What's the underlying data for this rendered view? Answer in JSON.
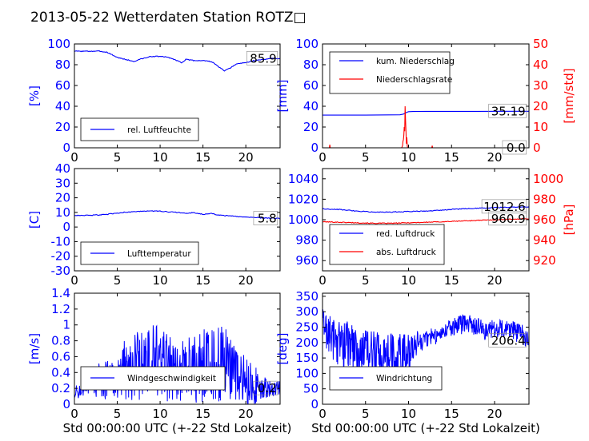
{
  "page": {
    "title": "2013-05-22 Wetterdaten Station ROTZ□",
    "colors": {
      "blue": "#0000ff",
      "red": "#ff0000",
      "black": "#000000"
    }
  },
  "chart_data": [
    {
      "id": "humidity",
      "type": "line",
      "ylabel": "[%]",
      "xlabel": "",
      "xlim": [
        0,
        24
      ],
      "ylim": [
        0,
        100
      ],
      "xticks": [
        0,
        5,
        10,
        15,
        20
      ],
      "yticks": [
        0,
        20,
        40,
        60,
        80,
        100
      ],
      "legend": {
        "position": "lower-left",
        "entries": [
          "rel. Luftfeuchte"
        ]
      },
      "annotations": [
        {
          "text": "85.9",
          "x": 23.6,
          "y": 85.9,
          "axis": "left"
        }
      ],
      "series": [
        {
          "name": "rel. Luftfeuchte",
          "color": "#0000ff",
          "style": "smooth",
          "x": [
            0,
            1,
            2,
            3,
            3.8,
            4.3,
            5,
            6,
            7,
            7.5,
            8,
            9,
            10,
            11,
            12,
            12.5,
            13,
            14,
            15,
            16,
            16.5,
            17,
            17.5,
            18,
            19,
            20,
            21,
            22,
            23,
            24
          ],
          "y": [
            93,
            93,
            93,
            93,
            92,
            90,
            87,
            85,
            83,
            85,
            86,
            88,
            88,
            87,
            84,
            82,
            85,
            84,
            84,
            83,
            80,
            77,
            74,
            76,
            81,
            82,
            84,
            85,
            86,
            86
          ]
        }
      ]
    },
    {
      "id": "rain",
      "type": "line",
      "ylabel": "[mm]",
      "ylabel2": "[mm/std]",
      "xlabel": "",
      "xlim": [
        0,
        24
      ],
      "ylim": [
        0,
        100
      ],
      "ylim2": [
        0,
        50
      ],
      "xticks": [
        0,
        5,
        10,
        15,
        20
      ],
      "yticks": [
        0,
        20,
        40,
        60,
        80,
        100
      ],
      "yticks2": [
        0,
        10,
        20,
        30,
        40,
        50
      ],
      "legend": {
        "position": "upper-left",
        "entries": [
          "kum. Niederschlag",
          "Niederschlagsrate"
        ]
      },
      "annotations": [
        {
          "text": "35.19",
          "x": 23.6,
          "y": 35.19,
          "axis": "left"
        },
        {
          "text": "0.0",
          "x": 23.6,
          "y": 0,
          "axis": "right"
        }
      ],
      "series": [
        {
          "name": "kum. Niederschlag",
          "color": "#0000ff",
          "style": "smooth",
          "axis": "left",
          "x": [
            0,
            5,
            9,
            9.4,
            9.6,
            9.8,
            10,
            10.5,
            12,
            15,
            18,
            21,
            24
          ],
          "y": [
            31.5,
            31.5,
            31.8,
            32.5,
            33.2,
            34.2,
            34.8,
            34.9,
            35.1,
            35.1,
            35.1,
            35.15,
            35.19
          ]
        },
        {
          "name": "Niederschlagsrate",
          "color": "#ff0000",
          "style": "spikes",
          "axis": "right",
          "x": [
            0,
            0.8,
            0.85,
            0.9,
            5,
            9.2,
            9.3,
            9.35,
            9.4,
            9.45,
            9.5,
            9.55,
            9.6,
            9.65,
            9.7,
            9.75,
            9.8,
            9.85,
            9.9,
            10,
            12.7,
            12.75,
            12.8,
            24
          ],
          "y": [
            0,
            0,
            1.5,
            0,
            0,
            0,
            1,
            3,
            4,
            6,
            10,
            8,
            20,
            14,
            8,
            2,
            5,
            1,
            0,
            0,
            0,
            1,
            0,
            0
          ]
        }
      ]
    },
    {
      "id": "temperature",
      "type": "line",
      "ylabel": "[C]",
      "xlabel": "",
      "xlim": [
        0,
        24
      ],
      "ylim": [
        -30,
        40
      ],
      "xticks": [
        0,
        5,
        10,
        15,
        20
      ],
      "yticks": [
        -30,
        -20,
        -10,
        0,
        10,
        20,
        30,
        40
      ],
      "legend": {
        "position": "lower-left",
        "entries": [
          "Lufttemperatur"
        ]
      },
      "annotations": [
        {
          "text": "5.8",
          "x": 23.6,
          "y": 5.8,
          "axis": "left"
        }
      ],
      "series": [
        {
          "name": "Lufttemperatur",
          "color": "#0000ff",
          "style": "smooth",
          "x": [
            0,
            1,
            2,
            3,
            4,
            5,
            6,
            7,
            8,
            9,
            10,
            11,
            12,
            13,
            14,
            15,
            16,
            17,
            18,
            19,
            20,
            21,
            22,
            23,
            24
          ],
          "y": [
            8,
            8,
            8,
            8.3,
            8.8,
            9.5,
            10.2,
            10.5,
            10.8,
            11,
            10.8,
            10.3,
            10,
            9.5,
            9.8,
            8.6,
            9.2,
            8,
            7.6,
            7.2,
            6.8,
            6.5,
            6.2,
            6,
            5.8
          ]
        }
      ]
    },
    {
      "id": "pressure",
      "type": "line",
      "ylabel": "",
      "ylabel2": "[hPa]",
      "xlabel": "",
      "xlim": [
        0,
        24
      ],
      "ylim": [
        950,
        1050
      ],
      "ylim2": [
        910,
        1010
      ],
      "xticks": [
        0,
        5,
        10,
        15,
        20
      ],
      "yticks": [
        960,
        980,
        1000,
        1020,
        1040
      ],
      "yticks2": [
        920,
        940,
        960,
        980,
        1000
      ],
      "legend": {
        "position": "lower-left",
        "entries": [
          "red. Luftdruck",
          "abs. Luftdruck"
        ]
      },
      "annotations": [
        {
          "text": "1012.6",
          "x": 23.6,
          "y": 1012.6,
          "axis": "left"
        },
        {
          "text": "960.9",
          "x": 23.6,
          "y": 960.9,
          "axis": "right"
        }
      ],
      "series": [
        {
          "name": "red. Luftdruck",
          "color": "#0000ff",
          "style": "smooth",
          "axis": "left",
          "x": [
            0,
            2,
            4,
            6,
            8,
            10,
            12,
            14,
            16,
            18,
            20,
            22,
            24
          ],
          "y": [
            1010.5,
            1010,
            1008.5,
            1007.5,
            1007.5,
            1008,
            1008.5,
            1009.5,
            1010.5,
            1011.2,
            1011.8,
            1012.3,
            1012.6
          ]
        },
        {
          "name": "abs. Luftdruck",
          "color": "#ff0000",
          "style": "smooth",
          "axis": "right",
          "x": [
            0,
            2,
            4,
            6,
            8,
            10,
            12,
            14,
            16,
            18,
            20,
            22,
            24
          ],
          "y": [
            958,
            957.5,
            957,
            956.5,
            956.5,
            957,
            957.5,
            958,
            958.7,
            959.3,
            959.9,
            960.5,
            960.9
          ]
        }
      ]
    },
    {
      "id": "wind-speed",
      "type": "line",
      "ylabel": "[m/s]",
      "xlabel": "Std 00:00:00 UTC (+-22 Std Lokalzeit)",
      "xlim": [
        0,
        24
      ],
      "ylim": [
        0,
        1.4
      ],
      "xticks": [
        0,
        5,
        10,
        15,
        20
      ],
      "yticks": [
        0,
        0.2,
        0.4,
        0.6,
        0.8,
        1.0,
        1.2,
        1.4
      ],
      "legend": {
        "position": "lower-center",
        "entries": [
          "Windgeschwindigkeit"
        ]
      },
      "annotations": [
        {
          "text": "0.2",
          "x": 23.6,
          "y": 0.2,
          "axis": "left"
        }
      ],
      "series": [
        {
          "name": "Windgeschwindigkeit",
          "color": "#0000ff",
          "style": "noisy",
          "x": [
            0,
            1,
            2,
            3,
            4,
            5,
            6,
            7,
            8,
            9,
            10,
            11,
            12,
            13,
            14,
            15,
            16,
            17,
            18,
            19,
            20,
            21,
            22,
            23,
            24
          ],
          "y": [
            0.15,
            0.18,
            0.25,
            0.3,
            0.3,
            0.32,
            0.45,
            0.5,
            0.5,
            0.55,
            0.5,
            0.45,
            0.4,
            0.42,
            0.45,
            0.5,
            0.5,
            0.5,
            0.48,
            0.35,
            0.3,
            0.25,
            0.22,
            0.2,
            0.2
          ],
          "amplitude": [
            0.08,
            0.1,
            0.12,
            0.25,
            0.25,
            0.25,
            0.4,
            0.45,
            0.45,
            0.5,
            0.45,
            0.45,
            0.35,
            0.4,
            0.45,
            0.5,
            0.45,
            0.55,
            0.45,
            0.35,
            0.3,
            0.25,
            0.15,
            0.1,
            0.1
          ]
        }
      ]
    },
    {
      "id": "wind-direction",
      "type": "line",
      "ylabel": "[deg]",
      "xlabel": "Std 00:00:00 UTC (+-22 Std Lokalzeit)",
      "xlim": [
        0,
        24
      ],
      "ylim": [
        0,
        360
      ],
      "xticks": [
        0,
        5,
        10,
        15,
        20
      ],
      "yticks": [
        0,
        50,
        100,
        150,
        200,
        250,
        300,
        350
      ],
      "legend": {
        "position": "lower-left",
        "entries": [
          "Windrichtung"
        ]
      },
      "annotations": [
        {
          "text": "206.4",
          "x": 23.6,
          "y": 206.4,
          "axis": "left"
        }
      ],
      "series": [
        {
          "name": "Windrichtung",
          "color": "#0000ff",
          "style": "noisy",
          "x": [
            0,
            1,
            2,
            3,
            4,
            5,
            6,
            7,
            8,
            9,
            10,
            11,
            12,
            13,
            14,
            15,
            16,
            17,
            18,
            19,
            20,
            21,
            22,
            23,
            24
          ],
          "y": [
            260,
            220,
            200,
            190,
            170,
            170,
            160,
            160,
            150,
            150,
            170,
            200,
            210,
            220,
            240,
            250,
            260,
            260,
            250,
            240,
            245,
            250,
            240,
            230,
            210
          ],
          "amplitude": [
            60,
            70,
            80,
            90,
            90,
            80,
            80,
            80,
            80,
            80,
            60,
            40,
            30,
            30,
            30,
            30,
            35,
            30,
            30,
            40,
            30,
            30,
            30,
            35,
            30
          ]
        }
      ]
    }
  ]
}
